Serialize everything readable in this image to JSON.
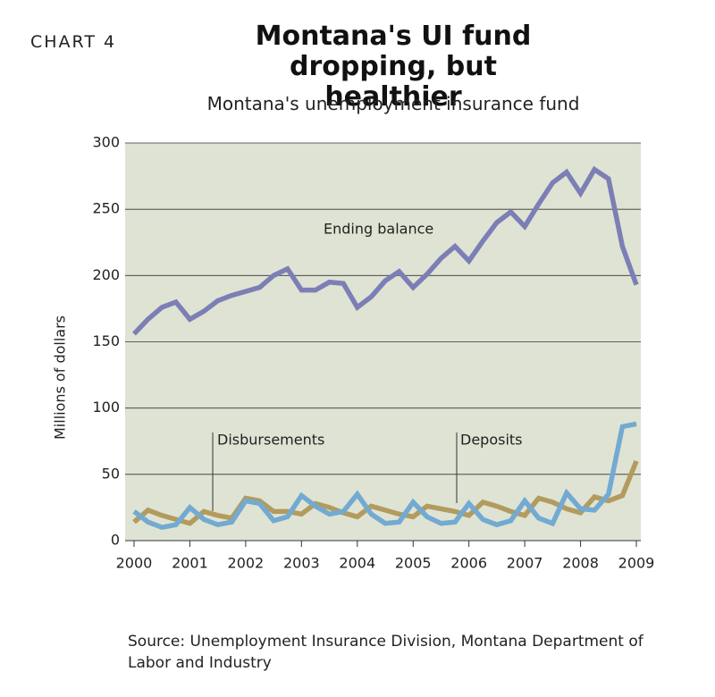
{
  "chart_data": {
    "type": "line",
    "label": "CHART 4",
    "title": "Montana's UI fund dropping, but healthier",
    "subtitle": "Montana's unemployment insurance fund",
    "y_label": "Millions of dollars",
    "source": "Source: Unemployment Insurance Division, Montana Department of Labor and Industry",
    "x": [
      2000,
      2000.25,
      2000.5,
      2000.75,
      2001,
      2001.25,
      2001.5,
      2001.75,
      2002,
      2002.25,
      2002.5,
      2002.75,
      2003,
      2003.25,
      2003.5,
      2003.75,
      2004,
      2004.25,
      2004.5,
      2004.75,
      2005,
      2005.25,
      2005.5,
      2005.75,
      2006,
      2006.25,
      2006.5,
      2006.75,
      2007,
      2007.25,
      2007.5,
      2007.75,
      2008,
      2008.25,
      2008.5,
      2008.75,
      2009
    ],
    "series": [
      {
        "name": "Ending balance",
        "color": "#7c7fb6",
        "values": [
          156,
          167,
          176,
          180,
          167,
          173,
          181,
          185,
          188,
          191,
          200,
          205,
          189,
          189,
          195,
          194,
          176,
          184,
          196,
          203,
          191,
          201,
          213,
          222,
          211,
          226,
          240,
          248,
          237,
          254,
          270,
          278,
          262,
          280,
          273,
          222,
          193
        ]
      },
      {
        "name": "Disbursements",
        "color": "#b29b5e",
        "values": [
          14,
          23,
          19,
          16,
          13,
          22,
          19,
          17,
          32,
          30,
          22,
          22,
          20,
          28,
          25,
          21,
          18,
          26,
          23,
          20,
          18,
          26,
          24,
          22,
          19,
          29,
          26,
          22,
          19,
          32,
          29,
          24,
          21,
          33,
          30,
          34,
          60
        ]
      },
      {
        "name": "Deposits",
        "color": "#72aad2",
        "values": [
          22,
          14,
          10,
          12,
          25,
          16,
          12,
          14,
          30,
          28,
          15,
          18,
          34,
          26,
          20,
          22,
          35,
          20,
          13,
          14,
          29,
          18,
          13,
          14,
          28,
          16,
          12,
          15,
          30,
          17,
          13,
          36,
          24,
          23,
          35,
          86,
          88
        ]
      }
    ],
    "xlim": [
      1999.84,
      2009.08
    ],
    "xticks": [
      2000,
      2001,
      2002,
      2003,
      2004,
      2005,
      2006,
      2007,
      2008,
      2009
    ],
    "ylim": [
      0,
      300
    ],
    "yticks": [
      0,
      50,
      100,
      150,
      200,
      250,
      300
    ],
    "grid": true,
    "plot_background": "#dfe3d3"
  }
}
